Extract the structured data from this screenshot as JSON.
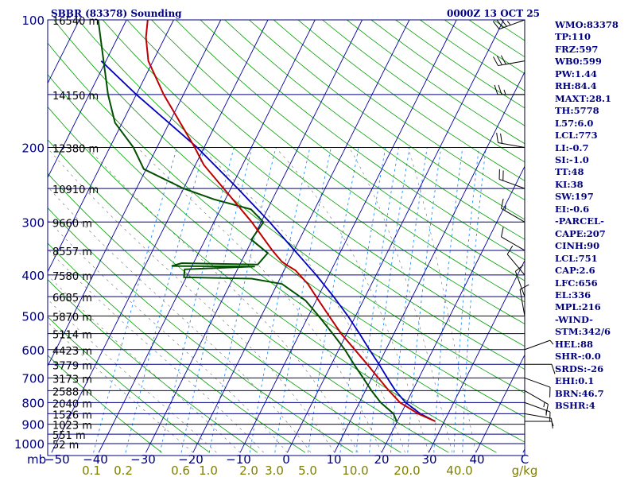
{
  "header": {
    "station": "SBBR (83378) Sounding",
    "time": "0000Z 13 OCT 25"
  },
  "indices": [
    "WMO:83378",
    "TP:110",
    "FRZ:597",
    "WB0:599",
    "PW:1.44",
    "RH:84.4",
    "MAXT:28.1",
    "TH:5778",
    "L57:6.0",
    "LCL:773",
    "LI:-0.7",
    "SI:-1.0",
    "TT:48",
    "KI:38",
    "SW:197",
    "EI:-0.6",
    "-PARCEL-",
    "CAPE:207",
    "CINH:90",
    "LCL:751",
    "CAP:2.6",
    "LFC:656",
    "EL:336",
    "MPL:216",
    "-WIND-",
    "STM:342/6",
    "HEL:88",
    "SHR-:0.0",
    "SRDS:-26",
    "EHI:0.1",
    "BRN:46.7",
    "BSHR:4"
  ],
  "colors": {
    "isobar": "#000080",
    "isotherm": "#0000a0",
    "dry_adiabat": "#00a000",
    "mixing_ratio": "#2090ff",
    "temperature": "#c00000",
    "dewpoint": "#005000",
    "parcel": "#0000c0",
    "mixing_label": "#808000",
    "frame": "#000080"
  },
  "chart_data": {
    "type": "skew-t",
    "x_unit": "C",
    "y_unit": "mb",
    "ylim": [
      1000,
      100
    ],
    "xlim": [
      -50,
      50
    ],
    "pressure_ticks": [
      {
        "p": 100,
        "label": "100"
      },
      {
        "p": 200,
        "label": "200"
      },
      {
        "p": 300,
        "label": "300"
      },
      {
        "p": 400,
        "label": "400"
      },
      {
        "p": 500,
        "label": "500"
      },
      {
        "p": 600,
        "label": "600"
      },
      {
        "p": 700,
        "label": "700"
      },
      {
        "p": 800,
        "label": "800"
      },
      {
        "p": 900,
        "label": "900"
      },
      {
        "p": 1000,
        "label": "1000"
      }
    ],
    "y_axis_label": "mb",
    "temp_ticks": [
      {
        "t": -40,
        "label": "−40"
      },
      {
        "t": -30,
        "label": "−30"
      },
      {
        "t": -20,
        "label": "−20"
      },
      {
        "t": -10,
        "label": "−10"
      },
      {
        "t": 0,
        "label": "0"
      },
      {
        "t": 10,
        "label": "10"
      },
      {
        "t": 20,
        "label": "20"
      },
      {
        "t": 30,
        "label": "30"
      },
      {
        "t": 40,
        "label": "40"
      }
    ],
    "x_axis_left": "−50",
    "x_axis_unit": "C",
    "mixing_ratio_labels": [
      {
        "w": 0.1,
        "label": "0.1"
      },
      {
        "w": 0.2,
        "label": "0.2"
      },
      {
        "w": 0.6,
        "label": "0.6"
      },
      {
        "w": 1.0,
        "label": "1.0"
      },
      {
        "w": 2.0,
        "label": "2.0"
      },
      {
        "w": 3.0,
        "label": "3.0"
      },
      {
        "w": 5.0,
        "label": "5.0"
      },
      {
        "w": 10.0,
        "label": "10.0"
      },
      {
        "w": 20.0,
        "label": "20.0"
      },
      {
        "w": 40.0,
        "label": "40.0"
      }
    ],
    "mixing_ratio_unit": "g/kg",
    "heights": [
      {
        "p": 100,
        "label": "16540 m"
      },
      {
        "p": 150,
        "label": "14150 m"
      },
      {
        "p": 200,
        "label": "12380 m"
      },
      {
        "p": 250,
        "label": "10910 m"
      },
      {
        "p": 300,
        "label": "9660 m"
      },
      {
        "p": 350,
        "label": "8557 m"
      },
      {
        "p": 400,
        "label": "7580 m"
      },
      {
        "p": 450,
        "label": "6685 m"
      },
      {
        "p": 500,
        "label": "5870 m"
      },
      {
        "p": 550,
        "label": "5114 m"
      },
      {
        "p": 600,
        "label": "4423 m"
      },
      {
        "p": 650,
        "label": "3779 m"
      },
      {
        "p": 700,
        "label": "3173 m"
      },
      {
        "p": 750,
        "label": "2588 m"
      },
      {
        "p": 800,
        "label": "2040 m"
      },
      {
        "p": 850,
        "label": "1526 m"
      },
      {
        "p": 900,
        "label": "1023 m"
      },
      {
        "p": 950,
        "label": "551 m"
      },
      {
        "p": 1000,
        "label": "52 m"
      }
    ],
    "temperature": [
      {
        "p": 886,
        "t": 28.1
      },
      {
        "p": 850,
        "t": 23.6
      },
      {
        "p": 800,
        "t": 18.6
      },
      {
        "p": 750,
        "t": 15.0
      },
      {
        "p": 700,
        "t": 11.4
      },
      {
        "p": 650,
        "t": 7.6
      },
      {
        "p": 600,
        "t": 3.4
      },
      {
        "p": 550,
        "t": -1.2
      },
      {
        "p": 500,
        "t": -5.6
      },
      {
        "p": 450,
        "t": -10.4
      },
      {
        "p": 420,
        "t": -13.5
      },
      {
        "p": 390,
        "t": -17.6
      },
      {
        "p": 380,
        "t": -19.8
      },
      {
        "p": 372,
        "t": -21.4
      },
      {
        "p": 350,
        "t": -24.6
      },
      {
        "p": 300,
        "t": -32.0
      },
      {
        "p": 250,
        "t": -41.5
      },
      {
        "p": 220,
        "t": -48.2
      },
      {
        "p": 200,
        "t": -52.0
      },
      {
        "p": 150,
        "t": -64.2
      },
      {
        "p": 125,
        "t": -71.0
      },
      {
        "p": 110,
        "t": -74.0
      },
      {
        "p": 100,
        "t": -75.5
      }
    ],
    "dewpoint": [
      {
        "p": 886,
        "t": 19.9
      },
      {
        "p": 850,
        "t": 18.4
      },
      {
        "p": 800,
        "t": 14.5
      },
      {
        "p": 750,
        "t": 11.3
      },
      {
        "p": 700,
        "t": 8.2
      },
      {
        "p": 650,
        "t": 4.8
      },
      {
        "p": 600,
        "t": 1.3
      },
      {
        "p": 550,
        "t": -3.0
      },
      {
        "p": 500,
        "t": -7.8
      },
      {
        "p": 460,
        "t": -12.2
      },
      {
        "p": 420,
        "t": -19.0
      },
      {
        "p": 408,
        "t": -26.0
      },
      {
        "p": 405,
        "t": -40.5
      },
      {
        "p": 388,
        "t": -41.2
      },
      {
        "p": 382,
        "t": -26.6
      },
      {
        "p": 381,
        "t": -44.3
      },
      {
        "p": 375,
        "t": -42.5
      },
      {
        "p": 378,
        "t": -26.2
      },
      {
        "p": 355,
        "t": -25.3
      },
      {
        "p": 330,
        "t": -30.2
      },
      {
        "p": 300,
        "t": -29.5
      },
      {
        "p": 280,
        "t": -33.5
      },
      {
        "p": 265,
        "t": -42.5
      },
      {
        "p": 250,
        "t": -50.0
      },
      {
        "p": 225,
        "t": -60.5
      },
      {
        "p": 200,
        "t": -65.0
      },
      {
        "p": 175,
        "t": -71.5
      },
      {
        "p": 150,
        "t": -76.0
      },
      {
        "p": 125,
        "t": -80.5
      },
      {
        "p": 100,
        "t": -86.0
      }
    ],
    "parcel": [
      {
        "p": 886,
        "t": 28.1
      },
      {
        "p": 850,
        "t": 24.1
      },
      {
        "p": 800,
        "t": 19.8
      },
      {
        "p": 750,
        "t": 16.4
      },
      {
        "p": 700,
        "t": 13.3
      },
      {
        "p": 650,
        "t": 10.1
      },
      {
        "p": 600,
        "t": 6.5
      },
      {
        "p": 550,
        "t": 2.7
      },
      {
        "p": 500,
        "t": -1.6
      },
      {
        "p": 450,
        "t": -6.7
      },
      {
        "p": 400,
        "t": -12.7
      },
      {
        "p": 350,
        "t": -19.9
      },
      {
        "p": 300,
        "t": -28.2
      },
      {
        "p": 250,
        "t": -38.5
      },
      {
        "p": 200,
        "t": -51.5
      },
      {
        "p": 150,
        "t": -70.0
      },
      {
        "p": 125,
        "t": -81.0
      }
    ],
    "winds": [
      {
        "p": 886,
        "dir": 90,
        "spd": 5
      },
      {
        "p": 850,
        "dir": 100,
        "spd": 10
      },
      {
        "p": 800,
        "dir": 110,
        "spd": 15
      },
      {
        "p": 750,
        "dir": 120,
        "spd": 15
      },
      {
        "p": 700,
        "dir": 110,
        "spd": 10
      },
      {
        "p": 650,
        "dir": 90,
        "spd": 10
      },
      {
        "p": 600,
        "dir": 70,
        "spd": 5
      },
      {
        "p": 500,
        "dir": 350,
        "spd": 10
      },
      {
        "p": 450,
        "dir": 340,
        "spd": 10
      },
      {
        "p": 400,
        "dir": 320,
        "spd": 10
      },
      {
        "p": 350,
        "dir": 300,
        "spd": 10
      },
      {
        "p": 300,
        "dir": 300,
        "spd": 15
      },
      {
        "p": 250,
        "dir": 290,
        "spd": 20
      },
      {
        "p": 200,
        "dir": 280,
        "spd": 20
      },
      {
        "p": 150,
        "dir": 270,
        "spd": 25
      },
      {
        "p": 125,
        "dir": 260,
        "spd": 30
      },
      {
        "p": 100,
        "dir": 250,
        "spd": 35
      }
    ]
  }
}
